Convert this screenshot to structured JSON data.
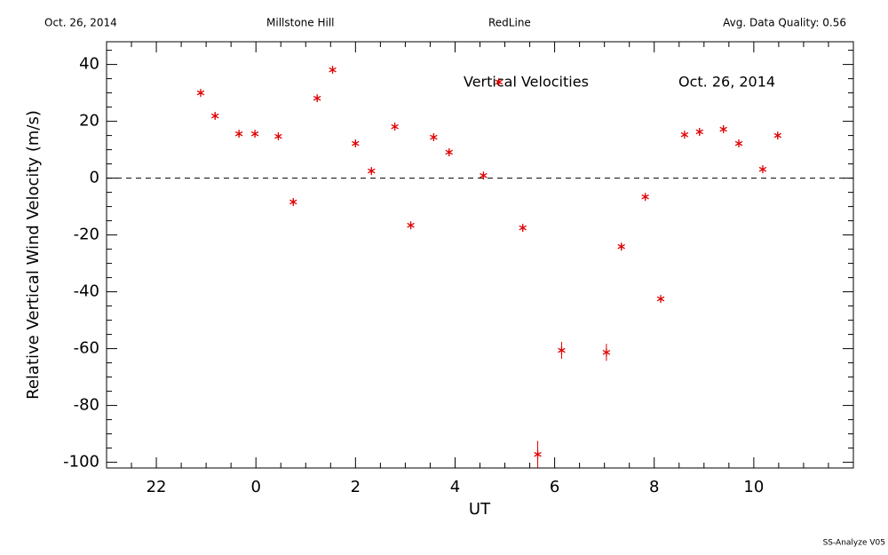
{
  "chart_data": {
    "type": "scatter",
    "header": [
      "Oct. 26, 2014",
      "Millstone Hill",
      "RedLine",
      "Avg. Data Quality: 0.56"
    ],
    "annotations": [
      "Vertical Velocities",
      "Oct. 26, 2014"
    ],
    "footer": "SS-Analyze V05",
    "x_label": "UT",
    "y_label": "Relative Vertical Wind Velocity (m/s)",
    "color": "#e00000",
    "x": [
      -1.11,
      -0.82,
      -0.34,
      -0.02,
      0.45,
      0.75,
      1.23,
      1.54,
      2.0,
      2.32,
      2.79,
      3.11,
      3.57,
      3.88,
      4.57,
      4.88,
      5.36,
      5.66,
      6.14,
      7.04,
      7.34,
      7.82,
      8.13,
      8.61,
      8.91,
      9.39,
      9.7,
      10.18,
      10.48
    ],
    "values": [
      30,
      21.9,
      15.6,
      15.6,
      14.7,
      -8.4,
      28.1,
      38.1,
      12.2,
      2.5,
      18.1,
      -16.6,
      14.4,
      9.1,
      0.9,
      33.8,
      -17.5,
      -97.2,
      -60.6,
      -61.3,
      -24.1,
      -6.6,
      -42.5,
      15.3,
      16.3,
      17.2,
      12.2,
      3.1,
      15.0
    ],
    "errors": [
      1,
      1,
      1,
      1,
      1,
      1,
      1,
      1,
      1,
      1,
      1,
      1,
      1,
      1,
      1,
      1,
      1,
      4.7,
      3,
      3,
      1,
      1,
      1,
      1,
      1,
      1,
      1,
      1,
      1
    ],
    "xlim": [
      -3,
      12
    ],
    "ylim": [
      -102,
      48
    ],
    "xticks": [
      {
        "value": -2,
        "label": "22"
      },
      0,
      2,
      4,
      6,
      8,
      10
    ],
    "yticks": [
      40,
      20,
      0,
      -20,
      -40,
      -60,
      -80,
      -100
    ],
    "xminorticks": [
      -3,
      -2.5,
      -1.5,
      -1,
      -0.5,
      0.5,
      1,
      1.5,
      2.5,
      3,
      3.5,
      4.5,
      5,
      5.5,
      6.5,
      7,
      7.5,
      8.5,
      9,
      9.5,
      10.5,
      11,
      11.5,
      12
    ],
    "yminorticks": [
      -95,
      -90,
      -85,
      -75,
      -70,
      -65,
      -55,
      -50,
      -45,
      -35,
      -30,
      -25,
      -15,
      -10,
      -5,
      5,
      10,
      15,
      25,
      30,
      35,
      45
    ],
    "reference_line": 0
  }
}
